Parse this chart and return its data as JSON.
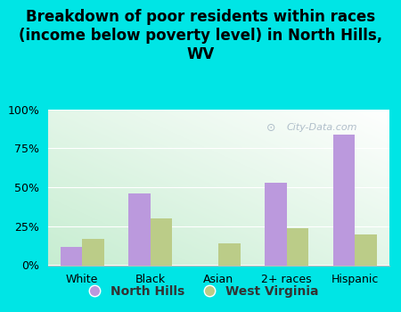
{
  "title": "Breakdown of poor residents within races\n(income below poverty level) in North Hills,\nWV",
  "categories": [
    "White",
    "Black",
    "Asian",
    "2+ races",
    "Hispanic"
  ],
  "north_hills": [
    12,
    46,
    0,
    53,
    84
  ],
  "west_virginia": [
    17,
    30,
    14,
    24,
    20
  ],
  "north_hills_color": "#bb99dd",
  "west_virginia_color": "#bbcc88",
  "background_outer": "#00e5e5",
  "background_inner_topleft": "#c8eedd",
  "background_inner_topright": "#e8f8f0",
  "background_inner_bottom": "#e0f0d8",
  "yticks": [
    0,
    25,
    50,
    75,
    100
  ],
  "ytick_labels": [
    "0%",
    "25%",
    "50%",
    "75%",
    "100%"
  ],
  "bar_width": 0.32,
  "title_fontsize": 12,
  "legend_fontsize": 10,
  "tick_fontsize": 9,
  "watermark": "@  City-Data.com"
}
